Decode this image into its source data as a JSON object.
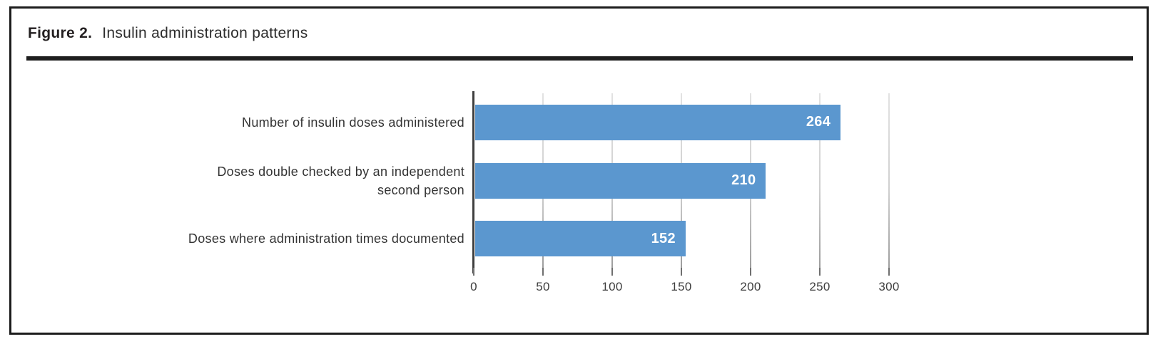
{
  "figure": {
    "label": "Figure 2.",
    "title": "Insulin administration patterns"
  },
  "chart_data": {
    "type": "bar",
    "orientation": "horizontal",
    "title": "Insulin administration patterns",
    "categories": [
      "Number of insulin doses administered",
      "Doses double checked by an independent\nsecond person",
      "Doses where administration times documented"
    ],
    "values": [
      264,
      210,
      152
    ],
    "xlabel": "",
    "ylabel": "",
    "xlim": [
      0,
      300
    ],
    "xticks": [
      0,
      50,
      100,
      150,
      200,
      250,
      300
    ],
    "grid": true,
    "legend": "none",
    "bar_color": "#5b97cf",
    "value_label_color": "#ffffff",
    "axis_color": "#3f3f3f",
    "gridline_color": "#cfcfcf"
  }
}
